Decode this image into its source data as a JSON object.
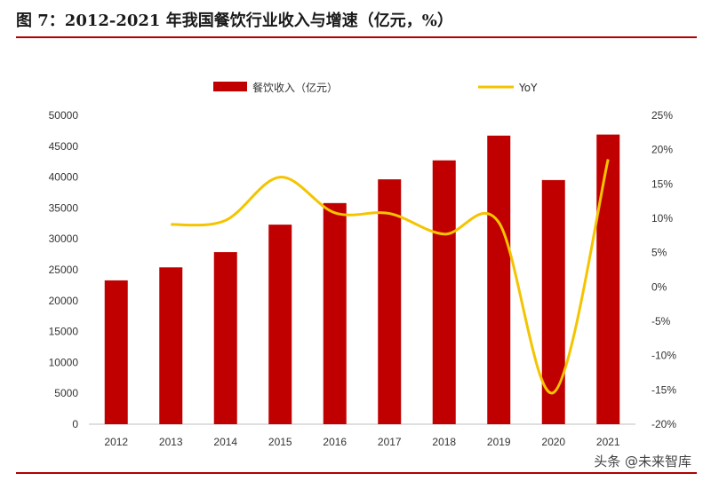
{
  "figure": {
    "title": "图 7：2012-2021 年我国餐饮行业收入与增速（亿元，%）",
    "watermark": "头条 @未来智库"
  },
  "colors": {
    "bar": "#c00000",
    "line": "#f5c400",
    "rule": "#b30000"
  },
  "chart_data": {
    "type": "bar",
    "categories": [
      "2012",
      "2013",
      "2014",
      "2015",
      "2016",
      "2017",
      "2018",
      "2019",
      "2020",
      "2021"
    ],
    "series": [
      {
        "name": "餐饮收入（亿元）",
        "type": "bar",
        "axis": "left",
        "values": [
          23283,
          25392,
          27860,
          32310,
          35799,
          39644,
          42716,
          46721,
          39527,
          46895
        ]
      },
      {
        "name": "YoY",
        "type": "line",
        "axis": "right",
        "values": [
          null,
          9.1,
          9.7,
          16.0,
          10.8,
          10.7,
          7.7,
          9.4,
          -15.4,
          18.6
        ]
      }
    ],
    "y_left": {
      "lim": [
        0,
        50000
      ],
      "ticks": [
        "0",
        "5000",
        "10000",
        "15000",
        "20000",
        "25000",
        "30000",
        "35000",
        "40000",
        "45000",
        "50000"
      ]
    },
    "y_right": {
      "lim": [
        -20,
        25
      ],
      "ticks": [
        "-20%",
        "-15%",
        "-10%",
        "-5%",
        "0%",
        "5%",
        "10%",
        "15%",
        "20%",
        "25%"
      ]
    },
    "grid": false,
    "legend_position": "top"
  }
}
